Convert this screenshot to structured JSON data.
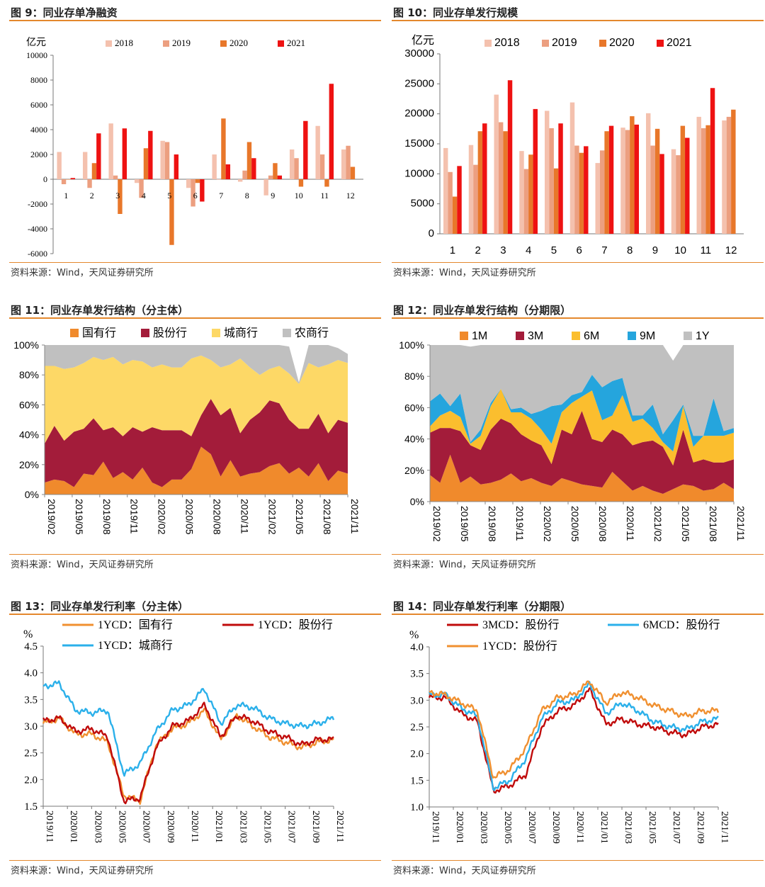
{
  "source_text": "资料来源：Wind，天风证券研究所",
  "colors": {
    "c2018": "#f4c1ae",
    "c2019": "#ec9f80",
    "c2020": "#e8772a",
    "c2021": "#ee1212",
    "accent": "#e4882d",
    "gov": "#f08a2c",
    "joint": "#a31c3a",
    "city": "#fdd866",
    "rural": "#c0c0c0",
    "m1": "#f08a2c",
    "m3": "#a31c3a",
    "m6": "#fbbe2e",
    "m9": "#25a5dd",
    "y1": "#c0c0c0",
    "line_orange": "#f09030",
    "line_red": "#c00b0b",
    "line_blue": "#2bb0ea"
  },
  "charts": [
    {
      "title": "图 9：同业存单净融资",
      "chart_data": {
        "type": "bar",
        "ylabel": "亿元",
        "ylim": [
          -6000,
          10000
        ],
        "yticks": [
          -6000,
          -4000,
          -2000,
          0,
          2000,
          4000,
          6000,
          8000,
          10000
        ],
        "categories": [
          "1",
          "2",
          "3",
          "4",
          "5",
          "6",
          "7",
          "8",
          "9",
          "10",
          "11",
          "12"
        ],
        "series": [
          {
            "name": "2018",
            "values": [
              2200,
              2200,
              4500,
              -300,
              3100,
              -700,
              2000,
              -200,
              -1300,
              2400,
              4300,
              2400
            ]
          },
          {
            "name": "2019",
            "values": [
              -400,
              -700,
              300,
              -1500,
              3000,
              -2200,
              0,
              700,
              300,
              1700,
              2000,
              2700
            ]
          },
          {
            "name": "2020",
            "values": [
              0,
              1300,
              -2800,
              2500,
              -5300,
              -300,
              4900,
              3000,
              1300,
              -600,
              -600,
              1000
            ]
          },
          {
            "name": "2021",
            "values": [
              100,
              3700,
              4100,
              3900,
              2000,
              -1800,
              1200,
              1700,
              300,
              4700,
              7700,
              null
            ]
          }
        ]
      }
    },
    {
      "title": "图 10：同业存单发行规模",
      "chart_data": {
        "type": "bar",
        "ylabel": "亿元",
        "ylim": [
          0,
          30000
        ],
        "yticks": [
          0,
          5000,
          10000,
          15000,
          20000,
          25000,
          30000
        ],
        "categories": [
          "1",
          "2",
          "3",
          "4",
          "5",
          "6",
          "7",
          "8",
          "9",
          "10",
          "11",
          "12"
        ],
        "series": [
          {
            "name": "2018",
            "values": [
              14300,
              14800,
              23200,
              13800,
              20500,
              21900,
              11800,
              17700,
              20100,
              14100,
              19500,
              18900
            ]
          },
          {
            "name": "2019",
            "values": [
              10300,
              11500,
              18600,
              10800,
              17600,
              14700,
              13900,
              17300,
              14700,
              13100,
              17600,
              19500
            ]
          },
          {
            "name": "2020",
            "values": [
              6200,
              17100,
              17100,
              13200,
              10900,
              13500,
              17100,
              19600,
              17500,
              18000,
              18100,
              20700
            ]
          },
          {
            "name": "2021",
            "values": [
              11300,
              18400,
              25600,
              20800,
              18400,
              14600,
              18000,
              18200,
              13300,
              16000,
              24300,
              null
            ]
          }
        ]
      }
    },
    {
      "title": "图 11：同业存单发行结构（分主体）",
      "chart_data": {
        "type": "area",
        "stacked": true,
        "ylim": [
          0,
          100
        ],
        "yticks": [
          "0%",
          "20%",
          "40%",
          "60%",
          "80%",
          "100%"
        ],
        "xticks": [
          "2019/02",
          "2019/05",
          "2019/08",
          "2019/11",
          "2020/02",
          "2020/05",
          "2020/08",
          "2020/11",
          "2021/02",
          "2021/05",
          "2021/08",
          "2021/11"
        ],
        "series": [
          {
            "name": "国有行",
            "values": [
              8,
              10,
              9,
              5,
              14,
              13,
              22,
              11,
              15,
              10,
              18,
              8,
              5,
              10,
              10,
              17,
              32,
              27,
              12,
              23,
              12,
              14,
              15,
              19,
              21,
              14,
              18,
              12,
              21,
              9,
              16,
              14
            ]
          },
          {
            "name": "股份行",
            "values": [
              26,
              36,
              27,
              37,
              30,
              38,
              21,
              34,
              24,
              35,
              24,
              37,
              38,
              33,
              33,
              22,
              21,
              37,
              41,
              35,
              29,
              36,
              40,
              44,
              40,
              36,
              26,
              32,
              33,
              32,
              34,
              34
            ]
          },
          {
            "name": "城商行",
            "values": [
              52,
              40,
              48,
              43,
              44,
              41,
              47,
              47,
              48,
              45,
              47,
              40,
              44,
              42,
              42,
              52,
              40,
              26,
              32,
              29,
              50,
              35,
              25,
              21,
              25,
              31,
              30,
              44,
              31,
              46,
              40,
              40
            ]
          },
          {
            "name": "农商行",
            "values": [
              14,
              14,
              16,
              15,
              12,
              8,
              10,
              8,
              13,
              10,
              11,
              15,
              13,
              15,
              15,
              9,
              7,
              10,
              15,
              13,
              9,
              15,
              20,
              16,
              14,
              18,
              1,
              12,
              15,
              13,
              8,
              6
            ]
          }
        ]
      }
    },
    {
      "title": "图 12：同业存单发行结构（分期限）",
      "chart_data": {
        "type": "area",
        "stacked": true,
        "ylim": [
          0,
          100
        ],
        "yticks": [
          "0%",
          "20%",
          "40%",
          "60%",
          "80%",
          "100%"
        ],
        "xticks": [
          "2019/02",
          "2019/05",
          "2019/08",
          "2019/11",
          "2020/02",
          "2020/05",
          "2020/08",
          "2020/11",
          "2021/02",
          "2021/05",
          "2021/08",
          "2021/11"
        ],
        "series": [
          {
            "name": "1M",
            "values": [
              17,
              12,
              30,
              12,
              16,
              11,
              12,
              14,
              18,
              13,
              15,
              12,
              10,
              15,
              13,
              11,
              10,
              9,
              19,
              13,
              7,
              10,
              7,
              5,
              8,
              11,
              10,
              7,
              8,
              12,
              8
            ]
          },
          {
            "name": "3M",
            "values": [
              27,
              35,
              17,
              33,
              20,
              22,
              34,
              39,
              32,
              30,
              24,
              24,
              14,
              31,
              30,
              47,
              30,
              29,
              27,
              30,
              29,
              28,
              32,
              30,
              15,
              35,
              15,
              20,
              17,
              13,
              19
            ]
          },
          {
            "name": "6M",
            "values": [
              4,
              8,
              11,
              9,
              1,
              9,
              15,
              19,
              7,
              14,
              14,
              10,
              13,
              11,
              20,
              9,
              31,
              14,
              9,
              25,
              15,
              15,
              8,
              3,
              9,
              15,
              10,
              15,
              17,
              17,
              17
            ]
          },
          {
            "name": "9M",
            "values": [
              16,
              14,
              3,
              15,
              1,
              4,
              2,
              0,
              2,
              3,
              3,
              12,
              24,
              5,
              5,
              3,
              10,
              21,
              22,
              11,
              4,
              2,
              15,
              5,
              20,
              1,
              7,
              0,
              24,
              3,
              3
            ]
          },
          {
            "name": "1Y",
            "values": [
              36,
              31,
              39,
              31,
              61,
              54,
              37,
              28,
              41,
              40,
              44,
              42,
              39,
              38,
              32,
              30,
              19,
              27,
              23,
              21,
              45,
              45,
              38,
              57,
              38,
              38,
              58,
              58,
              34,
              55,
              53
            ]
          }
        ]
      }
    },
    {
      "title": "图 13：同业存单发行利率（分主体）",
      "chart_data": {
        "type": "line",
        "ylabel": "%",
        "ylim": [
          1.5,
          4.5
        ],
        "yticks": [
          "1.5",
          "2.0",
          "2.5",
          "3.0",
          "3.5",
          "4.0",
          "4.5"
        ],
        "xticks": [
          "2019/11",
          "2020/01",
          "2020/03",
          "2020/05",
          "2020/07",
          "2020/09",
          "2020/11",
          "2021/01",
          "2021/03",
          "2021/05",
          "2021/07",
          "2021/09",
          "2021/11"
        ],
        "series": [
          {
            "name": "1YCD：国有行",
            "values": [
              3.05,
              3.15,
              2.85,
              2.85,
              2.7,
              1.7,
              1.6,
              2.65,
              2.95,
              3.05,
              3.3,
              2.75,
              3.2,
              3.0,
              2.8,
              2.7,
              2.6,
              2.7,
              2.75
            ]
          },
          {
            "name": "1YCD：股份行",
            "values": [
              3.1,
              3.15,
              2.9,
              2.95,
              2.8,
              1.6,
              1.65,
              2.6,
              3.0,
              3.1,
              3.4,
              2.8,
              3.2,
              3.1,
              2.9,
              2.8,
              2.65,
              2.75,
              2.75
            ]
          },
          {
            "name": "1YCD：城商行",
            "values": [
              3.75,
              3.8,
              3.3,
              3.25,
              3.3,
              2.1,
              2.3,
              2.9,
              3.3,
              3.4,
              3.7,
              3.05,
              3.4,
              3.35,
              3.15,
              3.05,
              3.0,
              3.05,
              3.15
            ]
          }
        ]
      }
    },
    {
      "title": "图 14：同业存单发行利率（分期限）",
      "chart_data": {
        "type": "line",
        "ylabel": "%",
        "ylim": [
          1.0,
          4.0
        ],
        "yticks": [
          "1.0",
          "1.5",
          "2.0",
          "2.5",
          "3.0",
          "3.5",
          "4.0"
        ],
        "xticks": [
          "2019/11",
          "2020/01",
          "2020/03",
          "2020/05",
          "2020/07",
          "2020/09",
          "2020/11",
          "2021/01",
          "2021/03",
          "2021/05",
          "2021/07",
          "2021/09",
          "2021/11"
        ],
        "series": [
          {
            "name": "3MCD：股份行",
            "values": [
              3.05,
              3.05,
              2.75,
              2.6,
              1.3,
              1.4,
              1.6,
              2.5,
              2.8,
              2.9,
              3.2,
              2.55,
              2.65,
              2.55,
              2.5,
              2.4,
              2.35,
              2.5,
              2.55
            ]
          },
          {
            "name": "6MCD：股份行",
            "values": [
              3.1,
              3.1,
              2.85,
              2.7,
              1.35,
              1.5,
              1.9,
              2.65,
              2.95,
              3.0,
              3.3,
              2.75,
              2.95,
              2.8,
              2.6,
              2.5,
              2.45,
              2.6,
              2.65
            ]
          },
          {
            "name": "1YCD：股份行",
            "values": [
              3.15,
              3.1,
              2.95,
              2.8,
              1.55,
              1.7,
              2.1,
              2.8,
              3.05,
              3.1,
              3.35,
              2.95,
              3.15,
              3.05,
              2.9,
              2.8,
              2.7,
              2.8,
              2.8
            ]
          }
        ]
      }
    }
  ]
}
